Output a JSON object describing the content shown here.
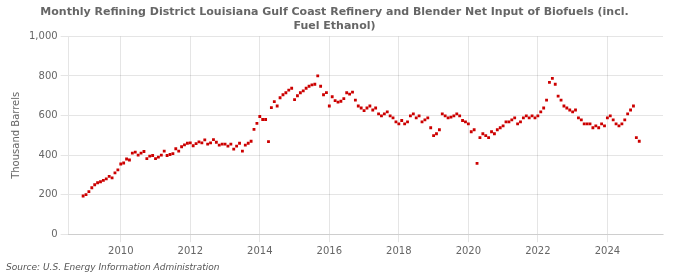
{
  "chart_data": {
    "type": "scatter",
    "title": "Monthly Refining District Louisiana Gulf Coast Refinery and Blender Net Input of Biofuels (incl.\nFuel Ethanol)",
    "ylabel": "Thousand Barrels",
    "annotations": [
      "Source: U.S. Energy Information Administration"
    ],
    "color": "#cc0000",
    "marker": "square",
    "grid": true,
    "xlim": [
      2008.5,
      2025.6
    ],
    "xticks": [
      2010,
      2012,
      2014,
      2016,
      2018,
      2020,
      2022,
      2024
    ],
    "ylim": [
      0,
      1000
    ],
    "yticks": [
      0,
      200,
      400,
      600,
      800,
      {
        "value": 1000,
        "label": "1,000"
      }
    ],
    "x": [
      2008.917,
      2009.0,
      2009.083,
      2009.167,
      2009.25,
      2009.333,
      2009.417,
      2009.5,
      2009.583,
      2009.667,
      2009.75,
      2009.833,
      2009.917,
      2010.0,
      2010.083,
      2010.167,
      2010.25,
      2010.333,
      2010.417,
      2010.5,
      2010.583,
      2010.667,
      2010.75,
      2010.833,
      2010.917,
      2011.0,
      2011.083,
      2011.167,
      2011.25,
      2011.333,
      2011.417,
      2011.5,
      2011.583,
      2011.667,
      2011.75,
      2011.833,
      2011.917,
      2012.0,
      2012.083,
      2012.167,
      2012.25,
      2012.333,
      2012.417,
      2012.5,
      2012.583,
      2012.667,
      2012.75,
      2012.833,
      2012.917,
      2013.0,
      2013.083,
      2013.167,
      2013.25,
      2013.333,
      2013.417,
      2013.5,
      2013.583,
      2013.667,
      2013.75,
      2013.833,
      2013.917,
      2014.0,
      2014.083,
      2014.167,
      2014.25,
      2014.333,
      2014.417,
      2014.5,
      2014.583,
      2014.667,
      2014.75,
      2014.833,
      2014.917,
      2015.0,
      2015.083,
      2015.167,
      2015.25,
      2015.333,
      2015.417,
      2015.5,
      2015.583,
      2015.667,
      2015.75,
      2015.833,
      2015.917,
      2016.0,
      2016.083,
      2016.167,
      2016.25,
      2016.333,
      2016.417,
      2016.5,
      2016.583,
      2016.667,
      2016.75,
      2016.833,
      2016.917,
      2017.0,
      2017.083,
      2017.167,
      2017.25,
      2017.333,
      2017.417,
      2017.5,
      2017.583,
      2017.667,
      2017.75,
      2017.833,
      2017.917,
      2018.0,
      2018.083,
      2018.167,
      2018.25,
      2018.333,
      2018.417,
      2018.5,
      2018.583,
      2018.667,
      2018.75,
      2018.833,
      2018.917,
      2019.0,
      2019.083,
      2019.167,
      2019.25,
      2019.333,
      2019.417,
      2019.5,
      2019.583,
      2019.667,
      2019.75,
      2019.833,
      2019.917,
      2020.0,
      2020.083,
      2020.167,
      2020.25,
      2020.333,
      2020.417,
      2020.5,
      2020.583,
      2020.667,
      2020.75,
      2020.833,
      2020.917,
      2021.0,
      2021.083,
      2021.167,
      2021.25,
      2021.333,
      2021.417,
      2021.5,
      2021.583,
      2021.667,
      2021.75,
      2021.833,
      2021.917,
      2022.0,
      2022.083,
      2022.167,
      2022.25,
      2022.333,
      2022.417,
      2022.5,
      2022.583,
      2022.667,
      2022.75,
      2022.833,
      2022.917,
      2023.0,
      2023.083,
      2023.167,
      2023.25,
      2023.333,
      2023.417,
      2023.5,
      2023.583,
      2023.667,
      2023.75,
      2023.833,
      2023.917,
      2024.0,
      2024.083,
      2024.167,
      2024.25,
      2024.333,
      2024.417,
      2024.5,
      2024.583,
      2024.667,
      2024.75,
      2024.833,
      2024.917
    ],
    "values": [
      193,
      200,
      215,
      235,
      250,
      260,
      265,
      272,
      280,
      292,
      285,
      310,
      325,
      355,
      360,
      380,
      375,
      410,
      415,
      400,
      410,
      418,
      382,
      395,
      398,
      382,
      390,
      400,
      420,
      398,
      403,
      407,
      432,
      420,
      442,
      452,
      460,
      462,
      447,
      458,
      467,
      462,
      477,
      455,
      462,
      478,
      465,
      450,
      455,
      455,
      445,
      455,
      430,
      445,
      460,
      420,
      450,
      460,
      470,
      530,
      560,
      595,
      580,
      580,
      468,
      640,
      670,
      648,
      690,
      705,
      715,
      728,
      738,
      680,
      700,
      715,
      725,
      738,
      748,
      755,
      758,
      800,
      748,
      705,
      716,
      648,
      695,
      675,
      668,
      672,
      685,
      715,
      708,
      718,
      678,
      648,
      638,
      625,
      638,
      648,
      628,
      638,
      608,
      598,
      608,
      618,
      598,
      588,
      568,
      558,
      575,
      558,
      568,
      598,
      608,
      588,
      598,
      568,
      578,
      588,
      538,
      498,
      508,
      528,
      608,
      598,
      588,
      592,
      598,
      608,
      598,
      575,
      568,
      558,
      518,
      528,
      358,
      488,
      508,
      498,
      488,
      518,
      508,
      528,
      538,
      548,
      568,
      568,
      578,
      588,
      558,
      568,
      588,
      598,
      588,
      598,
      588,
      598,
      618,
      638,
      678,
      768,
      788,
      758,
      698,
      678,
      648,
      638,
      628,
      618,
      628,
      588,
      578,
      558,
      558,
      558,
      538,
      548,
      538,
      558,
      548,
      588,
      598,
      578,
      558,
      548,
      558,
      578,
      608,
      628,
      648,
      488,
      470
    ]
  }
}
